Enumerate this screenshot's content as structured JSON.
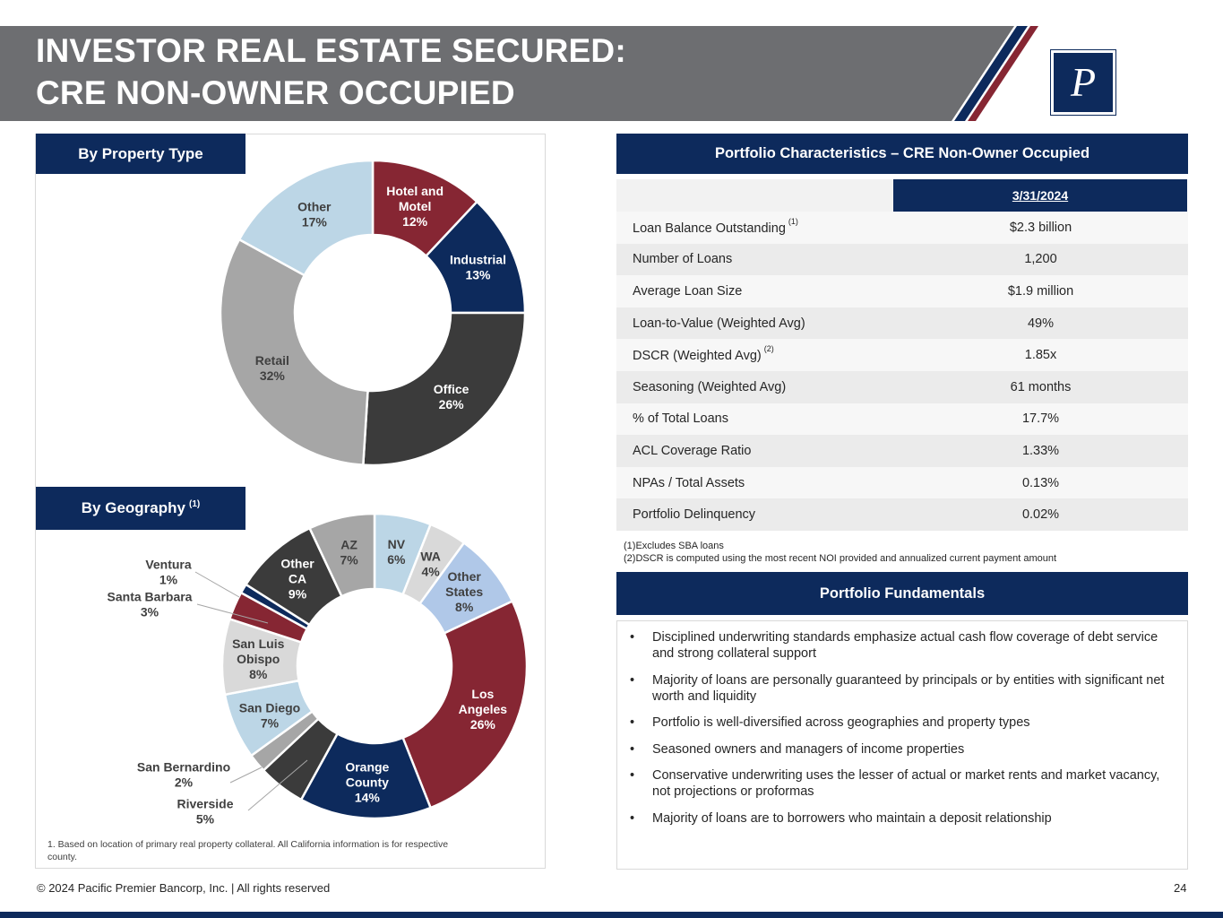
{
  "header": {
    "title_line1": "INVESTOR REAL ESTATE SECURED:",
    "title_line2": "CRE NON-OWNER OCCUPIED",
    "logo_letter": "P"
  },
  "colors": {
    "navy": "#0d2a5c",
    "maroon": "#862633",
    "dark_gray": "#3b3b3b",
    "mid_gray": "#a6a6a6",
    "light_gray": "#d9d9d9",
    "light_blue": "#bcd6e6",
    "periwinkle": "#b0c8e8",
    "header_gray": "#6d6e71"
  },
  "property_section": {
    "title": "By Property Type"
  },
  "geography_section": {
    "title": "By Geography",
    "superscript": "(1)"
  },
  "chart_data": [
    {
      "type": "pie",
      "subtype": "donut",
      "title": "By Property Type",
      "slices": [
        {
          "label": [
            "Hotel and",
            "Motel"
          ],
          "pct_label": "12%",
          "value": 12,
          "color": "#862633",
          "text_color": "#ffffff"
        },
        {
          "label": [
            "Industrial"
          ],
          "pct_label": "13%",
          "value": 13,
          "color": "#0d2a5c",
          "text_color": "#ffffff"
        },
        {
          "label": [
            "Office"
          ],
          "pct_label": "26%",
          "value": 26,
          "color": "#3b3b3b",
          "text_color": "#ffffff"
        },
        {
          "label": [
            "Retail"
          ],
          "pct_label": "32%",
          "value": 32,
          "color": "#a6a6a6",
          "text_color": "#404040"
        },
        {
          "label": [
            "Other"
          ],
          "pct_label": "17%",
          "value": 17,
          "color": "#bcd6e6",
          "text_color": "#404040"
        }
      ]
    },
    {
      "type": "pie",
      "subtype": "donut",
      "title": "By Geography",
      "slices": [
        {
          "label": [
            "NV"
          ],
          "pct_label": "6%",
          "value": 6,
          "color": "#bcd6e6",
          "text_color": "#404040"
        },
        {
          "label": [
            "WA"
          ],
          "pct_label": "4%",
          "value": 4,
          "color": "#d9d9d9",
          "text_color": "#404040"
        },
        {
          "label": [
            "Other",
            "States"
          ],
          "pct_label": "8%",
          "value": 8,
          "color": "#b0c8e8",
          "text_color": "#404040"
        },
        {
          "label": [
            "Los",
            "Angeles"
          ],
          "pct_label": "26%",
          "value": 26,
          "color": "#862633",
          "text_color": "#ffffff"
        },
        {
          "label": [
            "Orange",
            "County"
          ],
          "pct_label": "14%",
          "value": 14,
          "color": "#0d2a5c",
          "text_color": "#ffffff"
        },
        {
          "label": [
            "Riverside"
          ],
          "pct_label": "5%",
          "value": 5,
          "color": "#3b3b3b",
          "text_color": "#404040",
          "outside": true
        },
        {
          "label": [
            "San Bernardino"
          ],
          "pct_label": "2%",
          "value": 2,
          "color": "#a6a6a6",
          "text_color": "#404040",
          "outside": true
        },
        {
          "label": [
            "San Diego"
          ],
          "pct_label": "7%",
          "value": 7,
          "color": "#bcd6e6",
          "text_color": "#404040"
        },
        {
          "label": [
            "San Luis",
            "Obispo"
          ],
          "pct_label": "8%",
          "value": 8,
          "color": "#d9d9d9",
          "text_color": "#404040"
        },
        {
          "label": [
            "Santa Barbara"
          ],
          "pct_label": "3%",
          "value": 3,
          "color": "#862633",
          "text_color": "#404040",
          "outside": true
        },
        {
          "label": [
            "Ventura"
          ],
          "pct_label": "1%",
          "value": 1,
          "color": "#0d2a5c",
          "text_color": "#404040",
          "outside": true
        },
        {
          "label": [
            "Other",
            "CA"
          ],
          "pct_label": "9%",
          "value": 9,
          "color": "#3b3b3b",
          "text_color": "#ffffff"
        },
        {
          "label": [
            "AZ"
          ],
          "pct_label": "7%",
          "value": 7,
          "color": "#a6a6a6",
          "text_color": "#404040"
        }
      ]
    }
  ],
  "left_footnote": "1. Based on location of primary real property collateral. All California information is for respective county.",
  "characteristics": {
    "title": "Portfolio Characteristics – CRE Non-Owner Occupied",
    "date_header": "3/31/2024",
    "rows": [
      {
        "label": "Loan Balance Outstanding",
        "sup": "(1)",
        "value": "$2.3 billion"
      },
      {
        "label": "Number of Loans",
        "sup": "",
        "value": "1,200"
      },
      {
        "label": "Average Loan Size",
        "sup": "",
        "value": "$1.9 million"
      },
      {
        "label": "Loan-to-Value (Weighted Avg)",
        "sup": "",
        "value": "49%"
      },
      {
        "label": "DSCR (Weighted Avg)",
        "sup": "(2)",
        "value": "1.85x"
      },
      {
        "label": "Seasoning (Weighted Avg)",
        "sup": "",
        "value": "61 months"
      },
      {
        "label": "% of Total Loans",
        "sup": "",
        "value": "17.7%"
      },
      {
        "label": "ACL Coverage Ratio",
        "sup": "",
        "value": "1.33%"
      },
      {
        "label": "NPAs / Total Assets",
        "sup": "",
        "value": "0.13%"
      },
      {
        "label": "Portfolio Delinquency",
        "sup": "",
        "value": "0.02%"
      }
    ],
    "notes": [
      "(1)Excludes SBA loans",
      "(2)DSCR is computed using the most recent NOI provided and annualized current payment amount"
    ]
  },
  "fundamentals": {
    "title": "Portfolio Fundamentals",
    "bullet": "•",
    "items": [
      "Disciplined underwriting standards emphasize actual cash flow coverage of debt service and strong collateral support",
      "Majority of loans are personally guaranteed by principals or by entities with significant net worth and liquidity",
      "Portfolio is well-diversified across geographies and property types",
      "Seasoned owners and managers of income properties",
      "Conservative underwriting uses the lesser of actual or market rents and market vacancy, not projections or proformas",
      "Majority of loans are to borrowers who maintain a deposit relationship"
    ]
  },
  "footer": {
    "copyright": "© 2024 Pacific Premier Bancorp, Inc. | All rights reserved",
    "page_number": "24"
  }
}
